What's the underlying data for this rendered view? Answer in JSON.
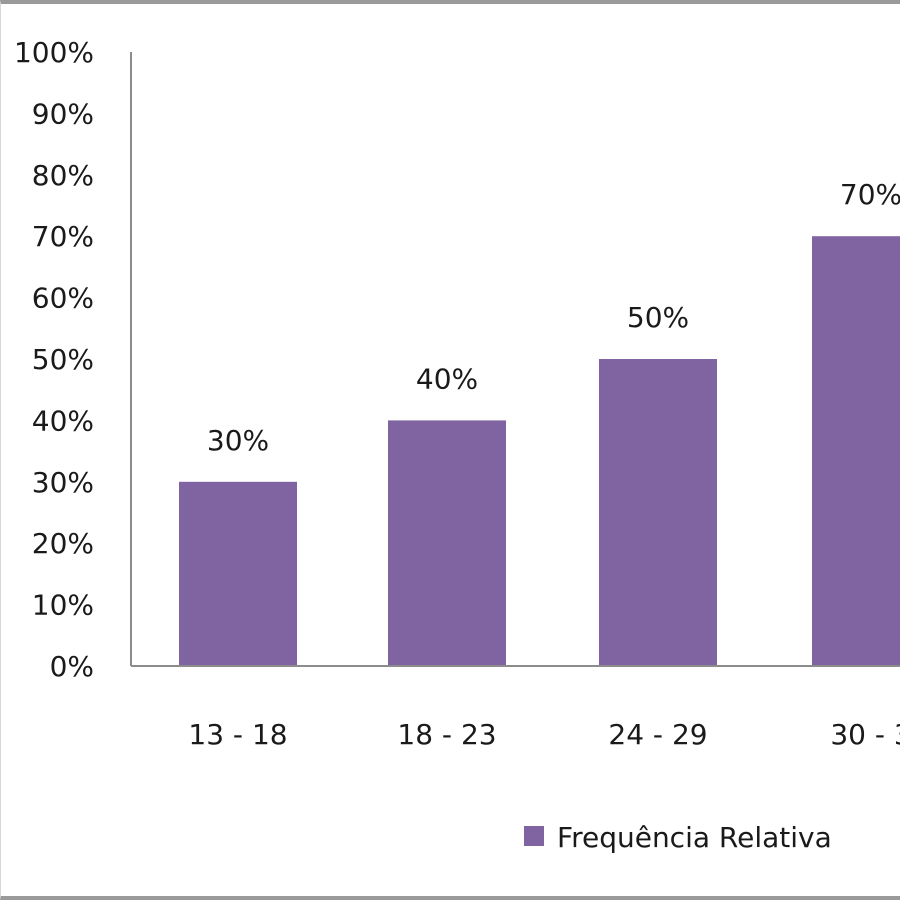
{
  "chart_data": {
    "type": "bar",
    "categories": [
      "13 - 18",
      "18 - 23",
      "24 - 29",
      "30 - 3"
    ],
    "series": [
      {
        "name": "Frequência Relativa",
        "values": [
          30,
          40,
          50,
          70
        ]
      }
    ],
    "data_labels": [
      "30%",
      "40%",
      "50%",
      "70%"
    ],
    "y_ticks": [
      "0%",
      "10%",
      "20%",
      "30%",
      "40%",
      "50%",
      "60%",
      "70%",
      "80%",
      "90%",
      "100%"
    ],
    "ylim": [
      0,
      100
    ],
    "grid": false,
    "legend_position": "bottom-right",
    "colors": {
      "bar": "#8064a2",
      "axis": "#8c8c8c",
      "frame": "#9a9a9a"
    }
  }
}
